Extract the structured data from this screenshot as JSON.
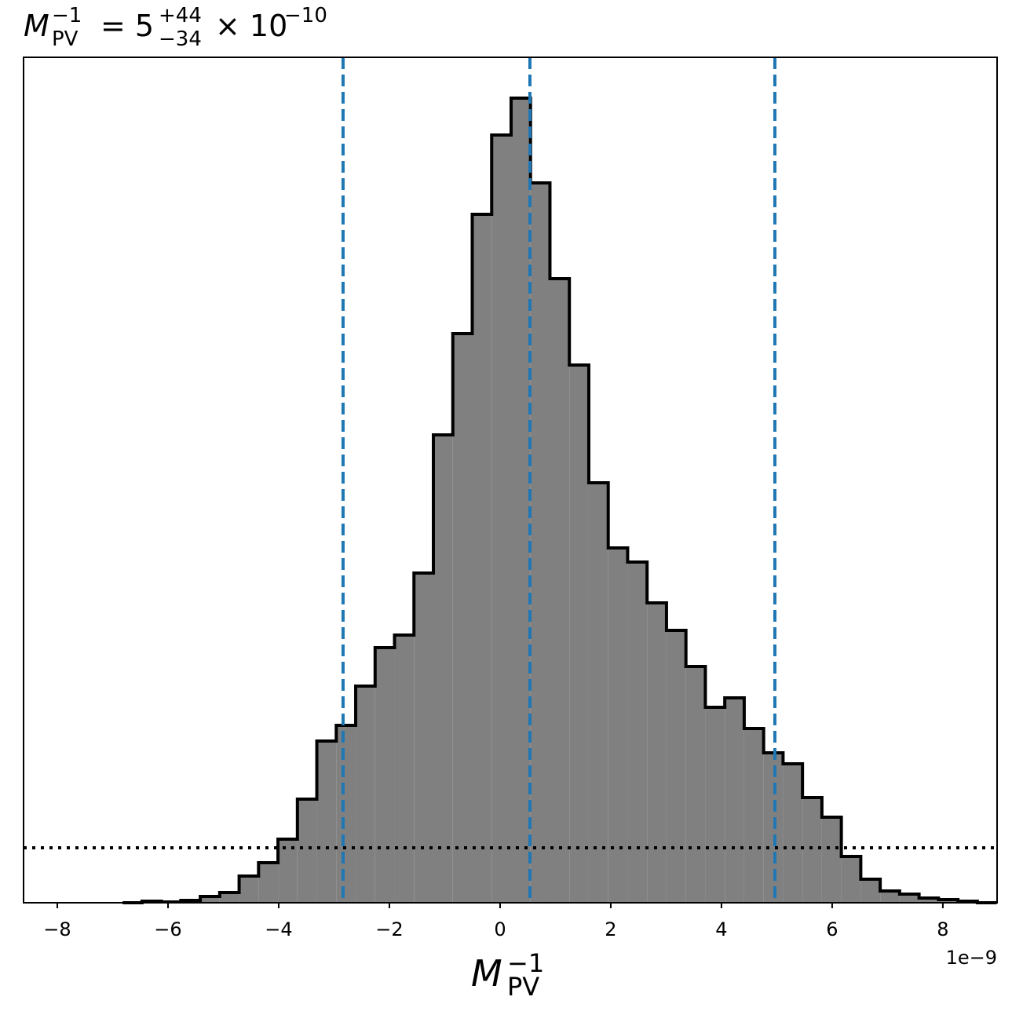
{
  "chart_data": {
    "type": "histogram",
    "title": {
      "symbol": "M",
      "subscript": "PV",
      "superscript": "−1",
      "equals": "= 5",
      "upper": "+44",
      "lower": "−34",
      "times": "× 10",
      "exponent": "−10"
    },
    "x_label": {
      "symbol": "M",
      "subscript": "PV",
      "superscript": "−1"
    },
    "x_offset_label": "1e−9",
    "bins": [
      -6.821,
      -6.47,
      -6.119,
      -5.768,
      -5.417,
      -5.066,
      -4.715,
      -4.364,
      -4.013,
      -3.662,
      -3.311,
      -2.96,
      -2.609,
      -2.258,
      -1.907,
      -1.556,
      -1.205,
      -0.854,
      -0.503,
      -0.152,
      0.199,
      0.55,
      0.901,
      1.252,
      1.603,
      1.954,
      2.305,
      2.656,
      3.007,
      3.358,
      3.709,
      4.06,
      4.411,
      4.762,
      5.113,
      5.464,
      5.815,
      6.166,
      6.517,
      6.868,
      7.219,
      7.57,
      7.921,
      8.272,
      8.623,
      8.974
    ],
    "values": [
      0,
      2,
      1,
      3,
      8,
      13,
      34,
      51,
      81,
      132,
      206,
      226,
      276,
      325,
      341,
      420,
      596,
      725,
      877,
      978,
      1025,
      917,
      795,
      685,
      535,
      452,
      434,
      382,
      347,
      301,
      249,
      261,
      222,
      191,
      177,
      134,
      109,
      59,
      30,
      15,
      11,
      6,
      4,
      2,
      0
    ],
    "color": "#808080",
    "edge_color": "#000000",
    "vlines": [
      -2.837,
      0.539,
      4.965
    ],
    "vline_color": "#1f77b4",
    "hline": 70,
    "xlim": [
      -8.61,
      8.98
    ],
    "ylim": [
      0,
      1077
    ],
    "xticks": [
      {
        "value": -8,
        "label": "−8"
      },
      {
        "value": -6,
        "label": "−6"
      },
      {
        "value": -4,
        "label": "−4"
      },
      {
        "value": -2,
        "label": "−2"
      },
      0,
      2,
      4,
      6,
      8
    ],
    "grid": false
  }
}
